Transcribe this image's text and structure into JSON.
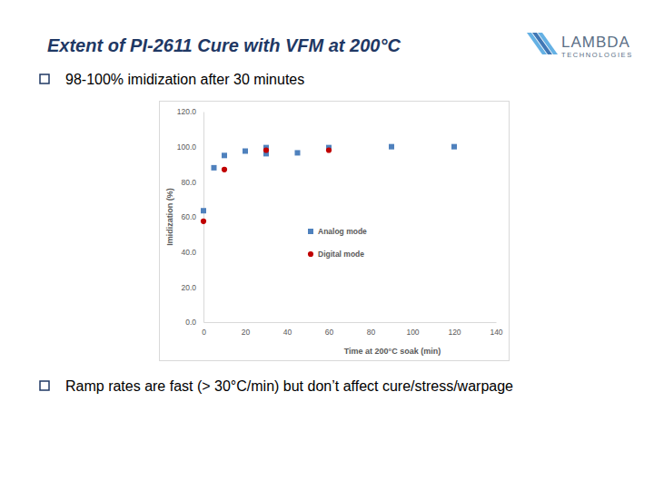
{
  "slide": {
    "title": "Extent of PI-2611 Cure with VFM at 200°C",
    "bullets": [
      "98-100% imidization after 30 minutes",
      "Ramp rates are fast (> 30°C/min) but don’t affect cure/stress/warpage"
    ],
    "logo": [
      "LAMBDA",
      "TECHNOLOGIES"
    ]
  },
  "chart_data": {
    "type": "scatter",
    "xlabel": "Time at 200°C soak (min)",
    "ylabel": "Imidization (%)",
    "xlim": [
      0,
      140
    ],
    "xticks": [
      0,
      20,
      40,
      60,
      80,
      100,
      120,
      140
    ],
    "ylim": [
      0,
      120
    ],
    "yticks": [
      {
        "value": 0,
        "label": "0.0"
      },
      {
        "value": 20,
        "label": "20.0"
      },
      {
        "value": 40,
        "label": "40.0"
      },
      {
        "value": 60,
        "label": "60.0"
      },
      {
        "value": 80,
        "label": "80.0"
      },
      {
        "value": 100,
        "label": "100.0"
      },
      {
        "value": 120,
        "label": "120.0"
      }
    ],
    "legend": "right",
    "series": [
      {
        "name": "Analog mode",
        "color": "#4f81bd",
        "marker": "square",
        "x": [
          0,
          5,
          10,
          20,
          30,
          30,
          45,
          60,
          90,
          120
        ],
        "values": [
          63.5,
          88,
          95,
          97.5,
          99.5,
          96,
          96.5,
          99.5,
          100,
          100
        ]
      },
      {
        "name": "Digital mode",
        "color": "#c00000",
        "marker": "circle",
        "x": [
          0,
          10,
          30,
          60
        ],
        "values": [
          57.5,
          87,
          98,
          98
        ]
      }
    ]
  }
}
